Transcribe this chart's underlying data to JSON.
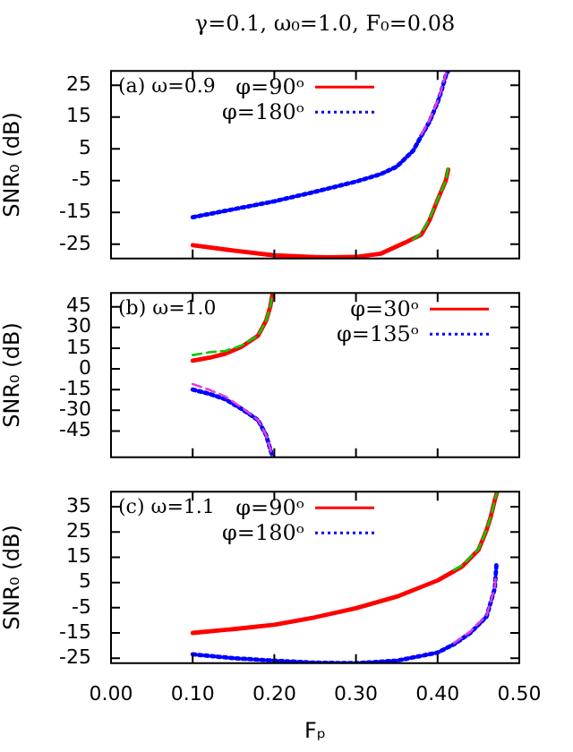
{
  "chart_data": [
    {
      "type": "line",
      "title": "γ=0.1, ω₀=1.0, F₀=0.08",
      "ylabel": "SNR₀ (dB)",
      "annotations": [
        "(a) ω=0.9"
      ],
      "xlim": [
        0,
        0.5
      ],
      "xticks": [
        0,
        0.1,
        0.2,
        0.3,
        0.4,
        0.5
      ],
      "ylim": [
        -29.5,
        29.5
      ],
      "yticks": [
        -25,
        -15,
        -5,
        5,
        15,
        25
      ],
      "tick_labels": "y",
      "legend": "top",
      "grid": false,
      "series": [
        {
          "name": "φ=90ᵒ",
          "color": "#ff0000",
          "line_style": "solid",
          "x": [
            0.1,
            0.15,
            0.2,
            0.25,
            0.27,
            0.3,
            0.33,
            0.36,
            0.38,
            0.39,
            0.4,
            0.41,
            0.413
          ],
          "values": [
            -25.3,
            -27,
            -28.5,
            -29,
            -29.1,
            -29,
            -28,
            -24.5,
            -22,
            -17.5,
            -11,
            -5,
            -1.5
          ]
        },
        {
          "name": "φ=180ᵒ",
          "color": "#0000ff",
          "line_style": "dotted",
          "x": [
            0.1,
            0.15,
            0.2,
            0.25,
            0.3,
            0.33,
            0.35,
            0.37,
            0.38,
            0.39,
            0.4,
            0.405,
            0.41,
            0.413
          ],
          "values": [
            -16.5,
            -14,
            -11.5,
            -8.5,
            -5.3,
            -3,
            -0.6,
            4.4,
            9,
            13.5,
            19.6,
            23.5,
            28,
            29.5
          ]
        },
        {
          "color": "#00cc00",
          "line_style": "dashed",
          "x": [
            0.37,
            0.38,
            0.39,
            0.4,
            0.41,
            0.413
          ],
          "values": [
            -23.5,
            -21.5,
            -17,
            -11,
            -5,
            -1
          ]
        },
        {
          "color": "#e040e0",
          "line_style": "dashed",
          "x": [
            0.38,
            0.39,
            0.4,
            0.405,
            0.41,
            0.413
          ],
          "values": [
            9.5,
            14,
            20,
            24,
            28.5,
            29.5
          ]
        }
      ]
    },
    {
      "type": "line",
      "ylabel": "SNR₀ (dB)",
      "annotations": [
        "(b) ω=1.0"
      ],
      "xlim": [
        0,
        0.5
      ],
      "xticks": [
        0,
        0.1,
        0.2,
        0.3,
        0.4,
        0.5
      ],
      "ylim": [
        -64,
        55
      ],
      "yticks": [
        -45,
        -30,
        -15,
        0,
        15,
        30,
        45
      ],
      "tick_labels": "y",
      "legend": "top right",
      "grid": false,
      "series": [
        {
          "name": "φ=30ᵒ",
          "color": "#ff0000",
          "line_style": "solid",
          "x": [
            0.1,
            0.12,
            0.14,
            0.16,
            0.18,
            0.19,
            0.195,
            0.198
          ],
          "values": [
            6,
            8,
            11,
            16,
            24,
            35,
            45,
            55
          ]
        },
        {
          "name": "φ=135ᵒ",
          "color": "#0000ff",
          "line_style": "dotted",
          "x": [
            0.1,
            0.12,
            0.14,
            0.16,
            0.18,
            0.19,
            0.195,
            0.198
          ],
          "values": [
            -15,
            -18,
            -22,
            -29,
            -37,
            -48,
            -58,
            -64
          ]
        },
        {
          "color": "#00cc00",
          "line_style": "dashed",
          "x": [
            0.1,
            0.12,
            0.14,
            0.16,
            0.18,
            0.19,
            0.195,
            0.198
          ],
          "values": [
            10,
            12,
            13,
            17,
            24,
            35,
            45,
            55
          ]
        },
        {
          "color": "#e040e0",
          "line_style": "dashed",
          "x": [
            0.1,
            0.12,
            0.14,
            0.16,
            0.18,
            0.19,
            0.195,
            0.198
          ],
          "values": [
            -11,
            -15,
            -20,
            -28,
            -37,
            -48,
            -58,
            -64
          ]
        }
      ]
    },
    {
      "type": "line",
      "ylabel": "SNR₀ (dB)",
      "xlabel": "Fₚ",
      "annotations": [
        "(c) ω=1.1"
      ],
      "xlim": [
        0,
        0.5
      ],
      "xticks": [
        {
          "value": 0,
          "label": "0.00"
        },
        {
          "value": 0.1,
          "label": "0.10"
        },
        {
          "value": 0.2,
          "label": "0.20"
        },
        {
          "value": 0.3,
          "label": "0.30"
        },
        {
          "value": 0.4,
          "label": "0.40"
        },
        {
          "value": 0.5,
          "label": "0.50"
        }
      ],
      "ylim": [
        -27,
        41
      ],
      "yticks": [
        -25,
        -15,
        -5,
        5,
        15,
        25,
        35
      ],
      "legend": "top",
      "grid": false,
      "series": [
        {
          "name": "φ=90ᵒ",
          "color": "#ff0000",
          "line_style": "solid",
          "x": [
            0.1,
            0.15,
            0.2,
            0.25,
            0.3,
            0.35,
            0.4,
            0.43,
            0.45,
            0.46,
            0.465,
            0.47,
            0.473
          ],
          "values": [
            -15,
            -13.5,
            -11.8,
            -8.8,
            -5.2,
            -0.6,
            5.8,
            11.3,
            17.9,
            25.8,
            31,
            37.6,
            41
          ]
        },
        {
          "name": "φ=180ᵒ",
          "color": "#0000ff",
          "line_style": "dotted",
          "x": [
            0.1,
            0.15,
            0.2,
            0.25,
            0.3,
            0.35,
            0.4,
            0.42,
            0.44,
            0.46,
            0.47,
            0.472
          ],
          "values": [
            -23.5,
            -25,
            -26,
            -26.8,
            -27,
            -26,
            -22.8,
            -19.5,
            -15,
            -8.5,
            2.7,
            12
          ]
        },
        {
          "color": "#00cc00",
          "line_style": "dashed",
          "x": [
            0.42,
            0.43,
            0.45,
            0.46,
            0.465,
            0.47,
            0.473
          ],
          "values": [
            10,
            11.8,
            18.2,
            26,
            31,
            37.6,
            41
          ]
        },
        {
          "color": "#e040e0",
          "line_style": "dashed",
          "x": [
            0.42,
            0.44,
            0.46,
            0.47,
            0.471
          ],
          "values": [
            -19,
            -14.5,
            -8,
            3,
            7
          ]
        }
      ]
    }
  ]
}
